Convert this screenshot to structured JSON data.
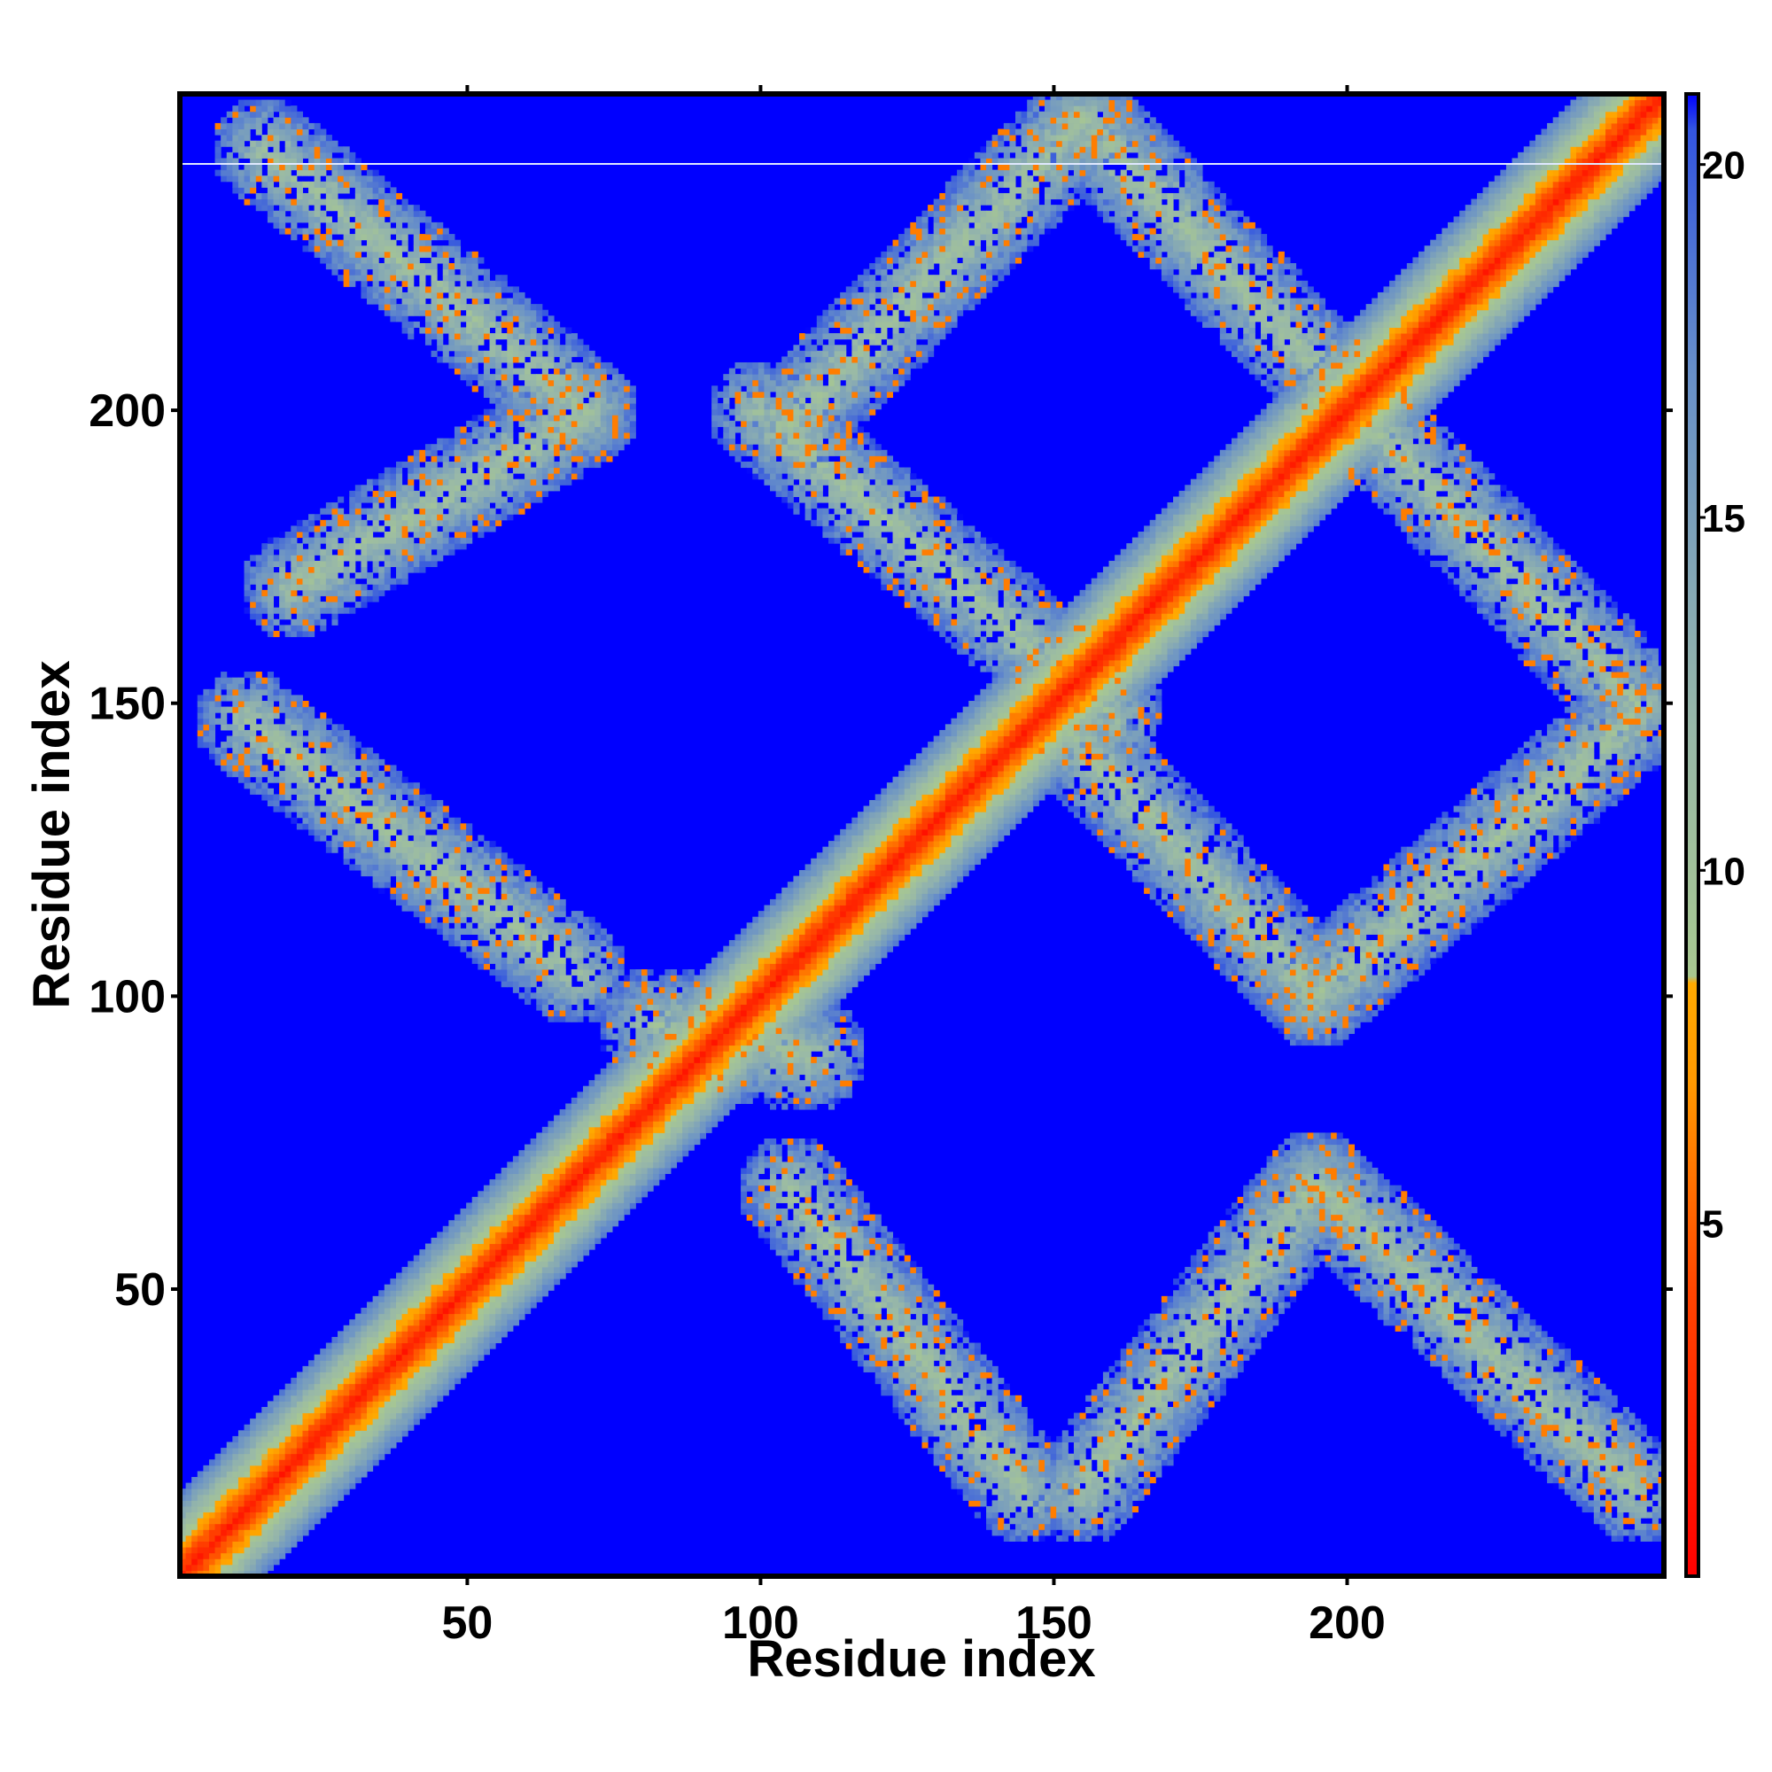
{
  "chart_data": {
    "type": "heatmap",
    "title": "",
    "xlabel": "Residue index",
    "ylabel": "Residue index",
    "n_residues": 254,
    "xlim": [
      1,
      254
    ],
    "ylim": [
      1,
      254
    ],
    "x_ticks": [
      50,
      100,
      150,
      200
    ],
    "y_ticks": [
      50,
      100,
      150,
      200
    ],
    "x_tick_labels": [
      "50",
      "100",
      "150",
      "200"
    ],
    "y_tick_labels": [
      "50",
      "100",
      "150",
      "200"
    ],
    "background_value": 21,
    "colorbar": {
      "range": [
        0,
        21
      ],
      "ticks": [
        5,
        10,
        15,
        20
      ],
      "tick_labels": [
        "5",
        "10",
        "15",
        "20"
      ],
      "colors": [
        {
          "value": 0,
          "color": "#ff0000"
        },
        {
          "value": 4,
          "color": "#ff4400"
        },
        {
          "value": 7,
          "color": "#ff9900"
        },
        {
          "value": 8.4,
          "color": "#ffaa00"
        },
        {
          "value": 8.5,
          "color": "#a8c890"
        },
        {
          "value": 12,
          "color": "#98b8a8"
        },
        {
          "value": 17,
          "color": "#6890c8"
        },
        {
          "value": 20.5,
          "color": "#3355e0"
        },
        {
          "value": 21,
          "color": "#0000ff"
        }
      ]
    },
    "features": [
      {
        "name": "main diagonal",
        "from": [
          1,
          1
        ],
        "to": [
          254,
          254
        ],
        "width": 14
      },
      {
        "name": "antiparallel band A",
        "from": [
          15,
          245
        ],
        "to": [
          70,
          200
        ],
        "width": 9
      },
      {
        "name": "antiparallel band B",
        "from": [
          20,
          170
        ],
        "to": [
          70,
          200
        ],
        "width": 9
      },
      {
        "name": "antiparallel band C",
        "from": [
          12,
          147
        ],
        "to": [
          68,
          104
        ],
        "width": 9
      },
      {
        "name": "antiparallel band D",
        "from": [
          100,
          200
        ],
        "to": [
          160,
          148
        ],
        "width": 9
      },
      {
        "name": "antiparallel band E",
        "from": [
          105,
          198
        ],
        "to": [
          155,
          250
        ],
        "width": 9
      },
      {
        "name": "antiparallel band F",
        "from": [
          155,
          250
        ],
        "to": [
          250,
          150
        ],
        "width": 9
      },
      {
        "name": "antiparallel band G",
        "from": [
          150,
          148
        ],
        "to": [
          195,
          100
        ],
        "width": 9
      },
      {
        "name": "antiparallel band H",
        "from": [
          195,
          100
        ],
        "to": [
          250,
          148
        ],
        "width": 9
      },
      {
        "name": "antiparallel band I",
        "from": [
          105,
          67
        ],
        "to": [
          145,
          15
        ],
        "width": 9
      },
      {
        "name": "antiparallel band J",
        "from": [
          155,
          15
        ],
        "to": [
          195,
          68
        ],
        "width": 9
      },
      {
        "name": "antiparallel band K",
        "from": [
          195,
          68
        ],
        "to": [
          250,
          15
        ],
        "width": 9
      },
      {
        "name": "diagonal side patch",
        "from": [
          82,
          95
        ],
        "to": [
          108,
          90
        ],
        "width": 10
      }
    ]
  }
}
